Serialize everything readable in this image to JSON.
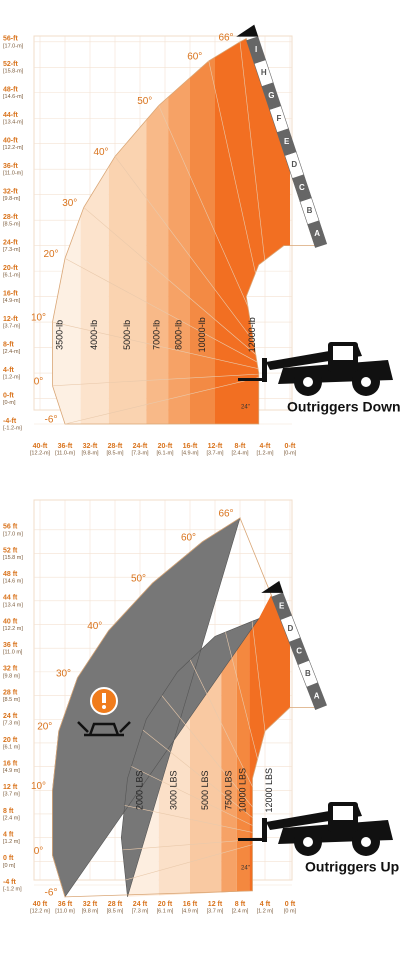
{
  "panels": [
    {
      "caption": "Outriggers Down",
      "y_ticks": [
        {
          "ft": "56-ft",
          "m": "[17.0-m]"
        },
        {
          "ft": "52-ft",
          "m": "[15.8-m]"
        },
        {
          "ft": "48-ft",
          "m": "[14.6-m]"
        },
        {
          "ft": "44-ft",
          "m": "[13.4-m]"
        },
        {
          "ft": "40-ft",
          "m": "[12.2-m]"
        },
        {
          "ft": "36-ft",
          "m": "[11.0-m]"
        },
        {
          "ft": "32-ft",
          "m": "[9.8-m]"
        },
        {
          "ft": "28-ft",
          "m": "[8.5-m]"
        },
        {
          "ft": "24-ft",
          "m": "[7.3-m]"
        },
        {
          "ft": "20-ft",
          "m": "[6.1-m]"
        },
        {
          "ft": "16-ft",
          "m": "[4.9-m]"
        },
        {
          "ft": "12-ft",
          "m": "[3.7-m]"
        },
        {
          "ft": "8-ft",
          "m": "[2.4-m]"
        },
        {
          "ft": "4-ft",
          "m": "[1.2-m]"
        },
        {
          "ft": "0-ft",
          "m": "[0-m]"
        },
        {
          "ft": "-4-ft",
          "m": "[-1.2-m]"
        }
      ],
      "x_ticks": [
        {
          "ft": "40-ft",
          "m": "[12.2-m]"
        },
        {
          "ft": "36-ft",
          "m": "[11.0-m]"
        },
        {
          "ft": "32-ft",
          "m": "[9.8-m]"
        },
        {
          "ft": "28-ft",
          "m": "[8.5-m]"
        },
        {
          "ft": "24-ft",
          "m": "[7.3-m]"
        },
        {
          "ft": "20-ft",
          "m": "[6.1-m]"
        },
        {
          "ft": "16-ft",
          "m": "[4.9-m]"
        },
        {
          "ft": "12-ft",
          "m": "[3.7-m]"
        },
        {
          "ft": "8-ft",
          "m": "[2.4-m]"
        },
        {
          "ft": "4-ft",
          "m": "[1.2-m]"
        },
        {
          "ft": "0-ft",
          "m": "[0-m]"
        }
      ],
      "angles": [
        "66°",
        "60°",
        "50°",
        "40°",
        "30°",
        "20°",
        "10°",
        "0°",
        "-6°"
      ],
      "zones": [
        "3500-lb",
        "4000-lb",
        "5000-lb",
        "7000-lb",
        "8000-lb",
        "10000-lb",
        "12000-lb"
      ],
      "extensions": [
        "A",
        "B",
        "C",
        "D",
        "E",
        "F",
        "G",
        "H",
        "I"
      ],
      "fork_offset": "24\""
    },
    {
      "caption": "Outriggers Up",
      "y_ticks": [
        {
          "ft": "56 ft",
          "m": "[17.0 m]"
        },
        {
          "ft": "52 ft",
          "m": "[15.8 m]"
        },
        {
          "ft": "48 ft",
          "m": "[14.6 m]"
        },
        {
          "ft": "44 ft",
          "m": "[13.4 m]"
        },
        {
          "ft": "40 ft",
          "m": "[12.2 m]"
        },
        {
          "ft": "36 ft",
          "m": "[11.0 m]"
        },
        {
          "ft": "32 ft",
          "m": "[9.8 m]"
        },
        {
          "ft": "28 ft",
          "m": "[8.5 m]"
        },
        {
          "ft": "24 ft",
          "m": "[7.3 m]"
        },
        {
          "ft": "20 ft",
          "m": "[6.1 m]"
        },
        {
          "ft": "16 ft",
          "m": "[4.9 m]"
        },
        {
          "ft": "12 ft",
          "m": "[3.7 m]"
        },
        {
          "ft": "8 ft",
          "m": "[2.4 m]"
        },
        {
          "ft": "4 ft",
          "m": "[1.2 m]"
        },
        {
          "ft": "0 ft",
          "m": "[0 m]"
        },
        {
          "ft": "-4 ft",
          "m": "[-1.2 m]"
        }
      ],
      "x_ticks": [
        {
          "ft": "40 ft",
          "m": "[12.2 m]"
        },
        {
          "ft": "36 ft",
          "m": "[11.0 m]"
        },
        {
          "ft": "32 ft",
          "m": "[9.8 m]"
        },
        {
          "ft": "28 ft",
          "m": "[8.5 m]"
        },
        {
          "ft": "24 ft",
          "m": "[7.3 m]"
        },
        {
          "ft": "20 ft",
          "m": "[6.1 m]"
        },
        {
          "ft": "16 ft",
          "m": "[4.9 m]"
        },
        {
          "ft": "12 ft",
          "m": "[3.7 m]"
        },
        {
          "ft": "8 ft",
          "m": "[2.4 m]"
        },
        {
          "ft": "4 ft",
          "m": "[1.2 m]"
        },
        {
          "ft": "0 ft",
          "m": "[0 m]"
        }
      ],
      "angles": [
        "66°",
        "60°",
        "50°",
        "40°",
        "30°",
        "20°",
        "10°",
        "0°",
        "-6°"
      ],
      "zones": [
        "2000 LBS",
        "3000 LBS",
        "5000 LBS",
        "7500 LBS",
        "10000 LBS",
        "12000 LBS"
      ],
      "extensions": [
        "A",
        "B",
        "C",
        "D",
        "E"
      ],
      "fork_offset": "24\""
    }
  ]
}
